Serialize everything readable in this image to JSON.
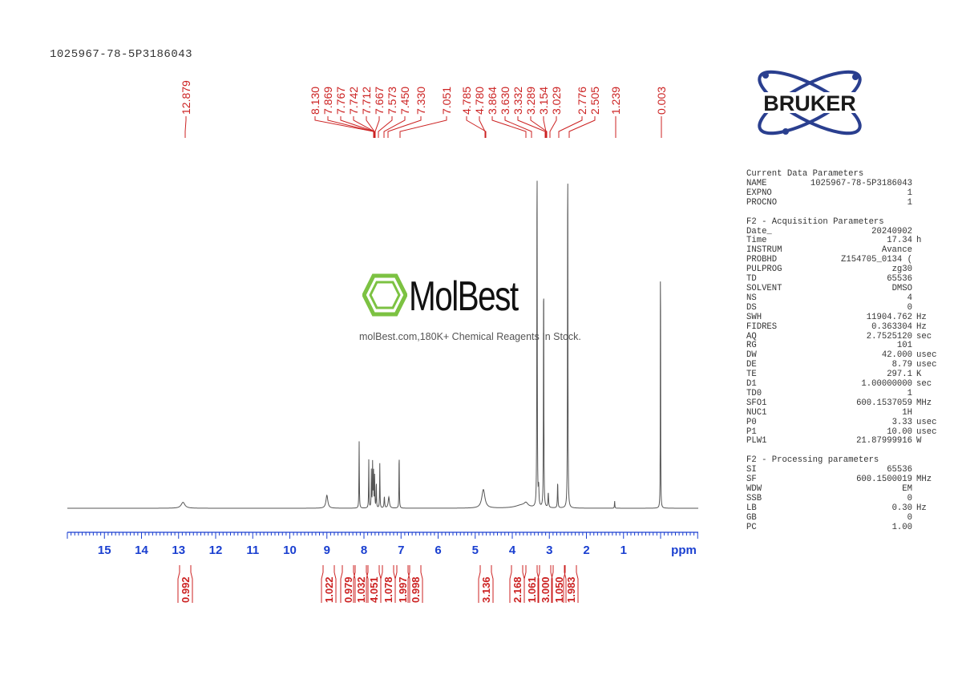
{
  "title": "1025967-78-5P3186043",
  "logo": {
    "text": "BRUKER",
    "color": "#2a3f8f"
  },
  "watermark": {
    "name": "MolBest",
    "tagline": "molBest.com,180K+ Chemical Reagents In Stock.",
    "color": "#7cc242"
  },
  "parameters": [
    {
      "heading": "Current Data Parameters",
      "rows": [
        [
          "NAME",
          "1025967-78-5P3186043",
          ""
        ],
        [
          "EXPNO",
          "1",
          ""
        ],
        [
          "PROCNO",
          "1",
          ""
        ]
      ]
    },
    {
      "heading": "F2 - Acquisition Parameters",
      "rows": [
        [
          "Date_",
          "20240902",
          ""
        ],
        [
          "Time",
          "17.34",
          "h"
        ],
        [
          "INSTRUM",
          "Avance",
          ""
        ],
        [
          "PROBHD",
          "Z154705_0134 (",
          ""
        ],
        [
          "PULPROG",
          "zg30",
          ""
        ],
        [
          "TD",
          "65536",
          ""
        ],
        [
          "SOLVENT",
          "DMSO",
          ""
        ],
        [
          "NS",
          "4",
          ""
        ],
        [
          "DS",
          "0",
          ""
        ],
        [
          "SWH",
          "11904.762",
          "Hz"
        ],
        [
          "FIDRES",
          "0.363304",
          "Hz"
        ],
        [
          "AQ",
          "2.7525120",
          "sec"
        ],
        [
          "RG",
          "101",
          ""
        ],
        [
          "DW",
          "42.000",
          "usec"
        ],
        [
          "DE",
          "8.79",
          "usec"
        ],
        [
          "TE",
          "297.1",
          "K"
        ],
        [
          "D1",
          "1.00000000",
          "sec"
        ],
        [
          "TD0",
          "1",
          ""
        ],
        [
          "SFO1",
          "600.1537059",
          "MHz"
        ],
        [
          "NUC1",
          "1H",
          ""
        ],
        [
          "P0",
          "3.33",
          "usec"
        ],
        [
          "P1",
          "10.00",
          "usec"
        ],
        [
          "PLW1",
          "21.87999916",
          "W"
        ]
      ]
    },
    {
      "heading": "F2 - Processing parameters",
      "rows": [
        [
          "SI",
          "65536",
          ""
        ],
        [
          "SF",
          "600.1500019",
          "MHz"
        ],
        [
          "WDW",
          "EM",
          ""
        ],
        [
          "SSB",
          "0",
          ""
        ],
        [
          "LB",
          "0.30",
          "Hz"
        ],
        [
          "GB",
          "0",
          ""
        ],
        [
          "PC",
          "1.00",
          ""
        ]
      ]
    }
  ],
  "chart_data": {
    "type": "line",
    "xlabel": "ppm",
    "xlim": [
      16.0,
      -1.0
    ],
    "x_reversed": true,
    "xticks": [
      "15",
      "14",
      "13",
      "12",
      "11",
      "10",
      "9",
      "8",
      "7",
      "6",
      "5",
      "4",
      "3",
      "2",
      "1"
    ],
    "grid": false,
    "line_color": "#555555",
    "label_color": "#cc2222",
    "axis_label_color": "#1a3fd0",
    "peak_labels": [
      "12.879",
      "8.130",
      "7.869",
      "7.767",
      "7.742",
      "7.712",
      "7.667",
      "7.573",
      "7.450",
      "7.330",
      "7.051",
      "4.785",
      "4.780",
      "3.864",
      "3.630",
      "3.332",
      "3.289",
      "3.154",
      "3.029",
      "2.776",
      "2.505",
      "1.239",
      "0.003"
    ],
    "peaks": [
      {
        "ppm": 12.88,
        "height": 0.016,
        "width": 0.06
      },
      {
        "ppm": 9.0,
        "height": 0.035,
        "width": 0.03
      },
      {
        "ppm": 8.13,
        "height": 0.18,
        "width": 0.006
      },
      {
        "ppm": 7.87,
        "height": 0.13,
        "width": 0.006
      },
      {
        "ppm": 7.8,
        "height": 0.1,
        "width": 0.006
      },
      {
        "ppm": 7.767,
        "height": 0.12,
        "width": 0.006
      },
      {
        "ppm": 7.742,
        "height": 0.1,
        "width": 0.006
      },
      {
        "ppm": 7.712,
        "height": 0.09,
        "width": 0.006
      },
      {
        "ppm": 7.667,
        "height": 0.07,
        "width": 0.006
      },
      {
        "ppm": 7.573,
        "height": 0.12,
        "width": 0.006
      },
      {
        "ppm": 7.45,
        "height": 0.03,
        "width": 0.01
      },
      {
        "ppm": 7.33,
        "height": 0.03,
        "width": 0.02
      },
      {
        "ppm": 7.051,
        "height": 0.15,
        "width": 0.006
      },
      {
        "ppm": 4.78,
        "height": 0.05,
        "width": 0.05
      },
      {
        "ppm": 3.75,
        "height": 0.008,
        "width": 0.2
      },
      {
        "ppm": 3.63,
        "height": 0.01,
        "width": 0.06
      },
      {
        "ppm": 3.332,
        "height": 1.0,
        "width": 0.006
      },
      {
        "ppm": 3.289,
        "height": 0.05,
        "width": 0.01
      },
      {
        "ppm": 3.154,
        "height": 0.67,
        "width": 0.006
      },
      {
        "ppm": 3.029,
        "height": 0.04,
        "width": 0.01
      },
      {
        "ppm": 2.776,
        "height": 0.07,
        "width": 0.008
      },
      {
        "ppm": 2.505,
        "height": 1.0,
        "width": 0.006
      },
      {
        "ppm": 1.239,
        "height": 0.02,
        "width": 0.006
      },
      {
        "ppm": 0.003,
        "height": 0.83,
        "width": 0.004
      }
    ],
    "integrals": [
      "0.992",
      "1.022",
      "0.979",
      "1.032",
      "4.051",
      "1.078",
      "1.997",
      "0.998",
      "3.136",
      "2.168",
      "1.061",
      "3.000",
      "1.050",
      "1.983"
    ]
  }
}
